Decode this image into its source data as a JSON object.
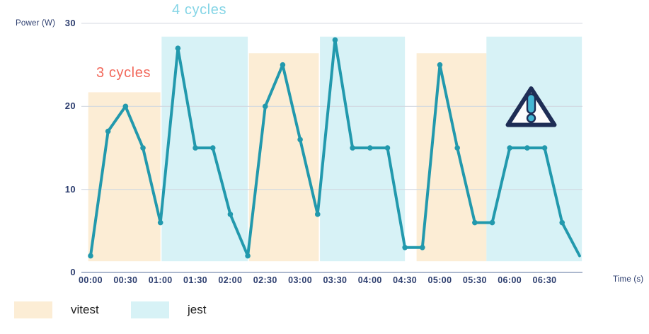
{
  "chart_data": {
    "type": "line",
    "title": "",
    "xlabel": "Time (s)",
    "ylabel": "Power (W)",
    "grid": true,
    "ylim": [
      0,
      30
    ],
    "y_ticks": [
      0,
      10,
      20,
      30
    ],
    "x_tick_labels": [
      "00:00",
      "00:30",
      "01:00",
      "01:30",
      "02:00",
      "02:30",
      "03:00",
      "03:30",
      "04:00",
      "04:30",
      "05:00",
      "05:30",
      "06:00",
      "06:30"
    ],
    "x_tick_seconds": [
      0,
      30,
      60,
      90,
      120,
      150,
      180,
      210,
      240,
      270,
      300,
      330,
      360,
      390
    ],
    "series": [
      {
        "name": "power",
        "color": "#2299ad",
        "x_seconds": [
          0,
          15,
          30,
          45,
          60,
          75,
          90,
          105,
          120,
          135,
          150,
          165,
          180,
          195,
          210,
          225,
          240,
          255,
          270,
          285,
          300,
          315,
          330,
          345,
          360,
          375,
          390,
          405,
          420
        ],
        "values": [
          2,
          17,
          20,
          15,
          6,
          27,
          15,
          15,
          7,
          2,
          20,
          25,
          16,
          7,
          28,
          15,
          15,
          15,
          3,
          3,
          25,
          15,
          6,
          6,
          15,
          15,
          15,
          6,
          2
        ],
        "end_marker": false
      }
    ],
    "regions": [
      {
        "label": "vitest",
        "from_s": -2,
        "to_s": 60,
        "top": 21.7,
        "bottom": 1.35,
        "color": "#fcedd5"
      },
      {
        "label": "jest",
        "from_s": 61,
        "to_s": 135,
        "top": 28.4,
        "bottom": 1.35,
        "color": "#d7f2f6"
      },
      {
        "label": "vitest",
        "from_s": 136,
        "to_s": 196,
        "top": 26.4,
        "bottom": 1.35,
        "color": "#fcedd5"
      },
      {
        "label": "jest",
        "from_s": 197,
        "to_s": 270,
        "top": 28.4,
        "bottom": 1.35,
        "color": "#d7f2f6"
      },
      {
        "label": "vitest",
        "from_s": 280,
        "to_s": 340,
        "top": 26.4,
        "bottom": 1.35,
        "color": "#fcedd5"
      },
      {
        "label": "jest",
        "from_s": 340,
        "to_s": 422,
        "top": 28.4,
        "bottom": 1.35,
        "color": "#d7f2f6"
      }
    ],
    "annotations": [
      {
        "text": "3 cycles",
        "color": "#f2695c"
      },
      {
        "text": "4 cycles",
        "color": "#85d5e6"
      }
    ],
    "warning_icon": {
      "present": true,
      "fill": "#fdfdfd",
      "border": "#1e2d55",
      "glyph_color": "#45b6d3"
    },
    "legend_position": "bottom"
  },
  "legend": {
    "items": [
      {
        "label": "vitest",
        "color": "#fcedd5"
      },
      {
        "label": "jest",
        "color": "#d7f2f6"
      }
    ]
  },
  "colors": {
    "line": "#2299ad",
    "grid": "#d2d8e0",
    "axis_line": "#8c9cba",
    "axis_text": "#2d3e6f",
    "legend_text": "#1f1f1f"
  }
}
